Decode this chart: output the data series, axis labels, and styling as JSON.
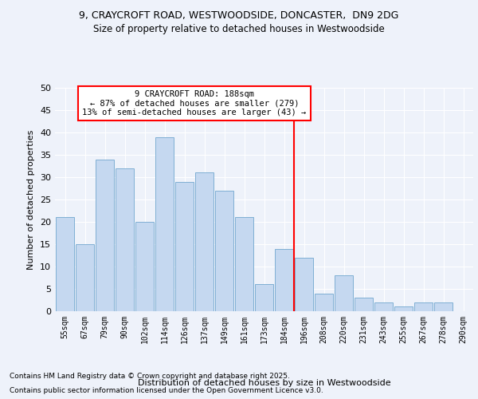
{
  "title1": "9, CRAYCROFT ROAD, WESTWOODSIDE, DONCASTER,  DN9 2DG",
  "title2": "Size of property relative to detached houses in Westwoodside",
  "xlabel": "Distribution of detached houses by size in Westwoodside",
  "ylabel": "Number of detached properties",
  "categories": [
    "55sqm",
    "67sqm",
    "79sqm",
    "90sqm",
    "102sqm",
    "114sqm",
    "126sqm",
    "137sqm",
    "149sqm",
    "161sqm",
    "173sqm",
    "184sqm",
    "196sqm",
    "208sqm",
    "220sqm",
    "231sqm",
    "243sqm",
    "255sqm",
    "267sqm",
    "278sqm",
    "290sqm"
  ],
  "values": [
    21,
    15,
    34,
    32,
    20,
    39,
    29,
    31,
    27,
    21,
    6,
    14,
    12,
    4,
    8,
    3,
    2,
    1,
    2,
    2,
    0
  ],
  "bar_color": "#c5d8f0",
  "bar_edge_color": "#7fafd4",
  "marker_index": 11,
  "annotation_title": "9 CRAYCROFT ROAD: 188sqm",
  "annotation_line1": "← 87% of detached houses are smaller (279)",
  "annotation_line2": "13% of semi-detached houses are larger (43) →",
  "ylim": [
    0,
    50
  ],
  "yticks": [
    0,
    5,
    10,
    15,
    20,
    25,
    30,
    35,
    40,
    45,
    50
  ],
  "footer1": "Contains HM Land Registry data © Crown copyright and database right 2025.",
  "footer2": "Contains public sector information licensed under the Open Government Licence v3.0.",
  "background_color": "#eef2fa"
}
